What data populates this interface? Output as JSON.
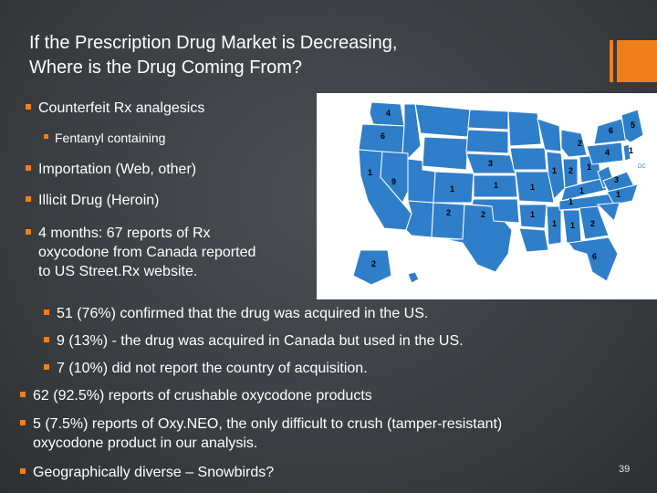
{
  "slide": {
    "title_line1": "If the Prescription Drug Market is Decreasing,",
    "title_line2": "Where is the Drug Coming From?",
    "bullets": {
      "b1": "Counterfeit Rx analgesics",
      "b1_sub": "Fentanyl containing",
      "b2": "Importation (Web, other)",
      "b3": "Illicit Drug (Heroin)",
      "b4_line1": "4 months: 67 reports of Rx",
      "b4_line2": "oxycodone from Canada reported",
      "b4_line3": "to US Street.Rx website.",
      "s1": "51 (76%) confirmed that the drug was acquired in the US.",
      "s2": "9 (13%) - the drug was acquired in Canada but used in the US.",
      "s3": "7 (10%) did not report the country of acquisition.",
      "b5": "62 (92.5%) reports of crushable oxycodone products",
      "b6_line1": "5 (7.5%) reports of Oxy.NEO, the only difficult to crush (tamper-resistant)",
      "b6_line2": "oxycodone product in our analysis.",
      "b7": "Geographically diverse – Snowbirds?"
    },
    "page_number": "39",
    "accent_color": "#f07f1b"
  },
  "map": {
    "state_color": "#2f7ec9",
    "labels": {
      "wa": "4",
      "or": "6",
      "ca": "1",
      "nv": "9",
      "co": "1",
      "ne": "3",
      "tx": "2",
      "nm": "2",
      "ak": "2",
      "mo": "1",
      "ks": "1",
      "il": "1",
      "in": "2",
      "oh": "1",
      "ky": "1",
      "mi": "2",
      "pa": "4",
      "va": "3",
      "nc": "1",
      "ny": "6",
      "ma": "5",
      "nj": "1",
      "tn": "1",
      "ms": "1",
      "al": "1",
      "ga": "2",
      "fl": "6",
      "dc": "DC",
      "ar": "1"
    }
  }
}
